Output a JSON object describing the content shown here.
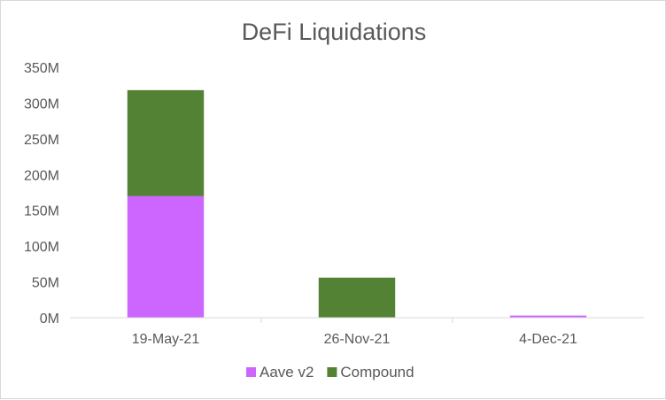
{
  "chart_data": {
    "type": "bar",
    "stacked": true,
    "title": "DeFi Liquidations",
    "categories": [
      "19-May-21",
      "26-Nov-21",
      "4-Dec-21"
    ],
    "series": [
      {
        "name": "Aave v2",
        "color": "#cc66ff",
        "values": [
          170000000,
          0,
          3000000
        ]
      },
      {
        "name": "Compound",
        "color": "#548235",
        "values": [
          148000000,
          56000000,
          0
        ]
      }
    ],
    "yticks": [
      "0M",
      "50M",
      "100M",
      "150M",
      "200M",
      "250M",
      "300M",
      "350M"
    ],
    "ylim": [
      0,
      350000000
    ],
    "grid": false,
    "legend_position": "bottom"
  }
}
